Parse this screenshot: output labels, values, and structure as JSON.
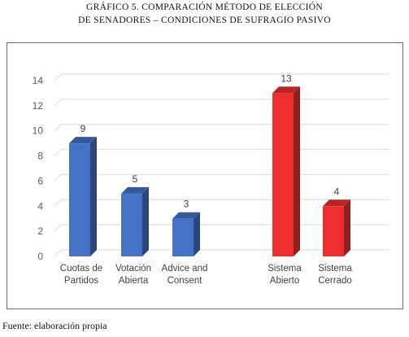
{
  "figure": {
    "title_line1": "GRÁFICO 5. COMPARACIÓN MÉTODO DE ELECCIÓN",
    "title_line2": "DE SENADORES – CONDICIONES DE SUFRAGIO PASIVO",
    "source": "Fuente: elaboración propia"
  },
  "chart_data": {
    "type": "bar",
    "title": "GRÁFICO 5. COMPARACIÓN MÉTODO DE ELECCIÓN DE SENADORES – CONDICIONES DE SUFRAGIO PASIVO",
    "categories": [
      "Cuotas de Partidos",
      "Votación Abierta",
      "Advice and Consent",
      "Sistema Abierto",
      "Sistema Cerrado"
    ],
    "category_lines": [
      [
        "Cuotas de",
        "Partidos"
      ],
      [
        "Votación",
        "Abierta"
      ],
      [
        "Advice and",
        "Consent"
      ],
      [
        "Sistema",
        "Abierto"
      ],
      [
        "Sistema",
        "Cerrado"
      ]
    ],
    "values": [
      9,
      5,
      3,
      13,
      4
    ],
    "groups": [
      0,
      0,
      0,
      1,
      1
    ],
    "group_colors": [
      "#4472C4",
      "#EE2E2E"
    ],
    "xlabel": "",
    "ylabel": "",
    "ylim": [
      0,
      14
    ],
    "yticks": [
      0,
      2,
      4,
      6,
      8,
      10,
      12,
      14
    ],
    "grid": true,
    "legend": "none",
    "data_labels": true
  }
}
